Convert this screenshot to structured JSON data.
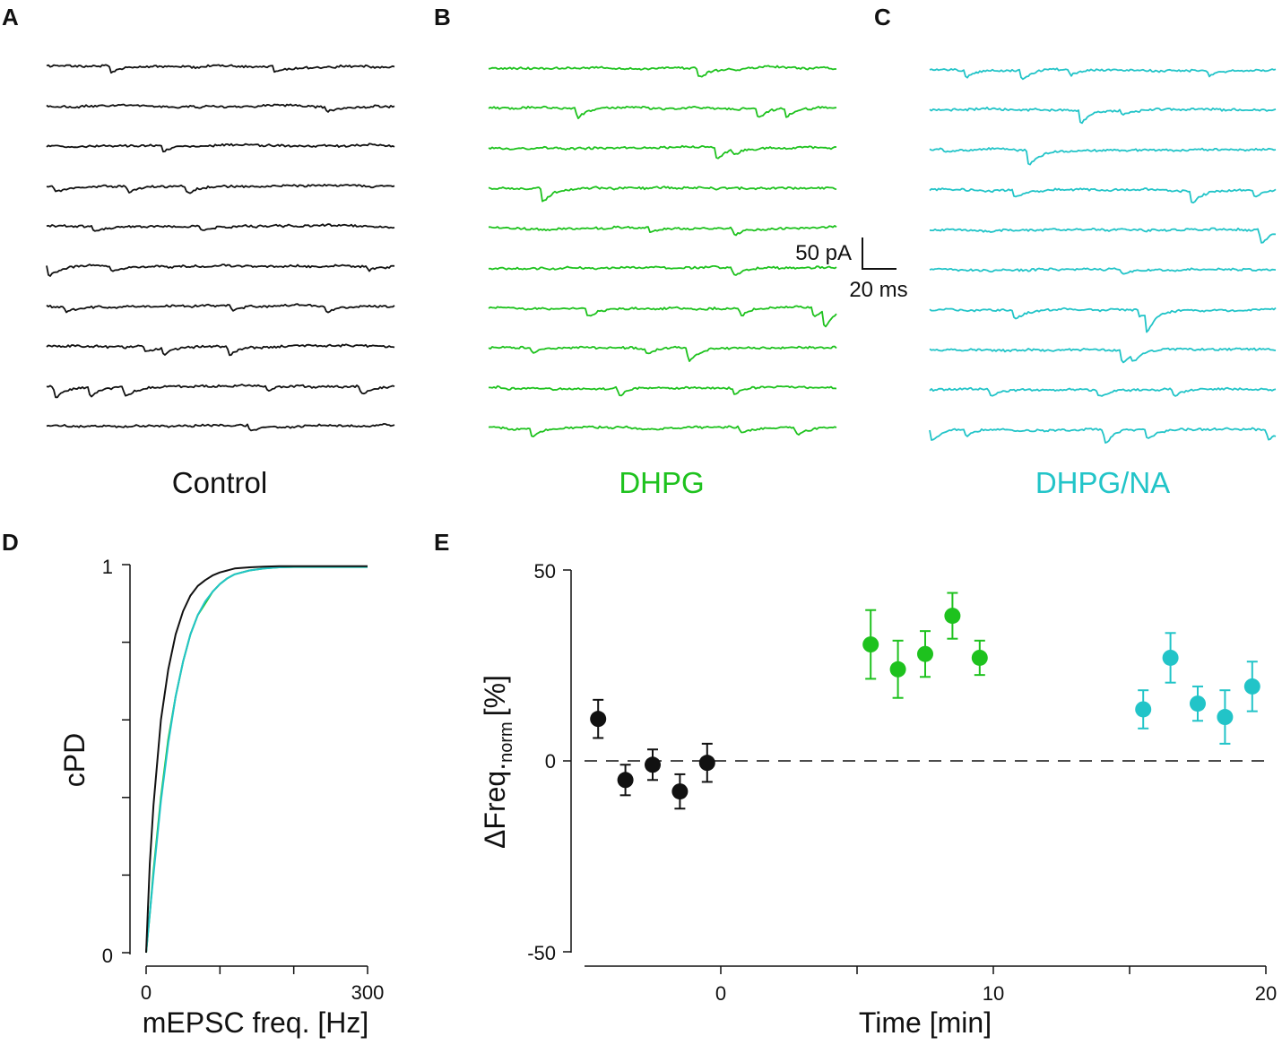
{
  "panel_labels": {
    "a": "A",
    "b": "B",
    "c": "C",
    "d": "D",
    "e": "E"
  },
  "colors": {
    "control": "#111111",
    "dhpg": "#1ec21e",
    "dhpg_na": "#22c4c8",
    "axis": "#111111"
  },
  "traces": {
    "control_label": "Control",
    "dhpg_label": "DHPG",
    "dhpg_na_label": "DHPG/NA",
    "scale_current": "50 pA",
    "scale_time": "20 ms",
    "control_rows": [
      [
        [
          0.18,
          12
        ],
        [
          0.65,
          8
        ]
      ],
      [
        [
          0.8,
          7
        ]
      ],
      [
        [
          0.33,
          9
        ]
      ],
      [
        [
          0.02,
          8
        ],
        [
          0.23,
          9
        ],
        [
          0.4,
          10
        ]
      ],
      [
        [
          0.13,
          8
        ],
        [
          0.44,
          7
        ]
      ],
      [
        [
          0.0,
          16
        ],
        [
          0.18,
          8
        ],
        [
          0.92,
          6
        ]
      ],
      [
        [
          0.05,
          8
        ],
        [
          0.53,
          7
        ],
        [
          0.8,
          9
        ]
      ],
      [
        [
          0.28,
          8
        ],
        [
          0.33,
          10
        ],
        [
          0.52,
          12
        ]
      ],
      [
        [
          0.02,
          16
        ],
        [
          0.12,
          14
        ],
        [
          0.22,
          14
        ],
        [
          0.63,
          7
        ],
        [
          0.9,
          12
        ]
      ],
      [
        [
          0.58,
          7
        ]
      ]
    ],
    "dhpg_rows": [
      [
        [
          0.6,
          14
        ]
      ],
      [
        [
          0.25,
          14
        ],
        [
          0.77,
          15
        ],
        [
          0.85,
          14
        ]
      ],
      [
        [
          0.65,
          18
        ],
        [
          0.7,
          8
        ]
      ],
      [
        [
          0.15,
          22
        ]
      ],
      [
        [
          0.46,
          8
        ],
        [
          0.7,
          10
        ]
      ],
      [
        [
          0.7,
          12
        ]
      ],
      [
        [
          0.28,
          14
        ],
        [
          0.72,
          12
        ],
        [
          0.93,
          14
        ],
        [
          0.96,
          24
        ]
      ],
      [
        [
          0.12,
          8
        ],
        [
          0.45,
          8
        ],
        [
          0.57,
          22
        ]
      ],
      [
        [
          0.37,
          12
        ],
        [
          0.7,
          8
        ]
      ],
      [
        [
          0.12,
          12
        ],
        [
          0.72,
          10
        ],
        [
          0.88,
          10
        ]
      ]
    ],
    "dhpg_na_rows": [
      [
        [
          0.1,
          10
        ],
        [
          0.26,
          14
        ],
        [
          0.4,
          8
        ],
        [
          0.8,
          8
        ]
      ],
      [
        [
          0.43,
          20
        ],
        [
          0.55,
          8
        ]
      ],
      [
        [
          0.04,
          6
        ],
        [
          0.28,
          22
        ]
      ],
      [
        [
          0.24,
          12
        ],
        [
          0.75,
          20
        ],
        [
          0.93,
          10
        ]
      ],
      [
        [
          0.95,
          22
        ]
      ],
      [
        [
          0.55,
          8
        ]
      ],
      [
        [
          0.24,
          16
        ],
        [
          0.6,
          10
        ],
        [
          0.62,
          30
        ]
      ],
      [
        [
          0.55,
          22
        ],
        [
          0.58,
          12
        ]
      ],
      [
        [
          0.17,
          10
        ],
        [
          0.48,
          10
        ],
        [
          0.7,
          10
        ]
      ],
      [
        [
          0.0,
          16
        ],
        [
          0.1,
          10
        ],
        [
          0.5,
          20
        ],
        [
          0.62,
          14
        ],
        [
          0.97,
          16
        ]
      ]
    ]
  },
  "chart_data": [
    {
      "panel": "D",
      "type": "line",
      "title": "",
      "xlabel": "mEPSC freq. [Hz]",
      "ylabel": "cPD",
      "xlim": [
        -8,
        300
      ],
      "ylim": [
        0,
        1
      ],
      "xticks": [
        0,
        300
      ],
      "yticks": [
        0,
        1
      ],
      "series": [
        {
          "name": "Control",
          "color": "#111111",
          "x": [
            0,
            5,
            10,
            20,
            30,
            40,
            50,
            60,
            70,
            80,
            90,
            100,
            110,
            120,
            140,
            160,
            180,
            200,
            300
          ],
          "y": [
            0.0,
            0.23,
            0.38,
            0.6,
            0.73,
            0.82,
            0.88,
            0.92,
            0.945,
            0.96,
            0.972,
            0.98,
            0.985,
            0.99,
            0.993,
            0.995,
            0.996,
            0.996,
            0.996
          ]
        },
        {
          "name": "DHPG",
          "color": "#1ec21e",
          "x": [
            0,
            5,
            10,
            20,
            30,
            40,
            50,
            60,
            70,
            80,
            90,
            100,
            110,
            120,
            140,
            160,
            180,
            200,
            300
          ],
          "y": [
            0.0,
            0.1,
            0.21,
            0.4,
            0.55,
            0.66,
            0.75,
            0.82,
            0.87,
            0.9,
            0.93,
            0.95,
            0.965,
            0.975,
            0.985,
            0.99,
            0.993,
            0.994,
            0.994
          ]
        },
        {
          "name": "DHPG/NA",
          "color": "#22c4c8",
          "x": [
            0,
            5,
            10,
            20,
            30,
            40,
            50,
            60,
            70,
            80,
            90,
            100,
            110,
            120,
            140,
            160,
            180,
            200,
            300
          ],
          "y": [
            0.0,
            0.1,
            0.2,
            0.39,
            0.54,
            0.66,
            0.75,
            0.82,
            0.87,
            0.905,
            0.93,
            0.95,
            0.965,
            0.975,
            0.985,
            0.99,
            0.993,
            0.994,
            0.994
          ]
        }
      ]
    },
    {
      "panel": "E",
      "type": "scatter",
      "title": "",
      "xlabel": "Time [min]",
      "ylabel_main": "ΔFreq.",
      "ylabel_sub": "norm",
      "ylabel_unit": "[%]",
      "xlim": [
        -5,
        20
      ],
      "ylim": [
        -50,
        50
      ],
      "xticks": [
        0,
        10,
        20
      ],
      "yticks": [
        50,
        0,
        -50
      ],
      "reference_line_y": 0,
      "series": [
        {
          "name": "Control",
          "color": "#111111",
          "x": [
            -4.5,
            -3.5,
            -2.5,
            -1.5,
            -0.5
          ],
          "y": [
            11,
            -5,
            -1,
            -8,
            -0.5
          ],
          "err": [
            5,
            4,
            4,
            4.5,
            5
          ]
        },
        {
          "name": "DHPG",
          "color": "#1ec21e",
          "x": [
            5.5,
            6.5,
            7.5,
            8.5,
            9.5
          ],
          "y": [
            30.5,
            24,
            28,
            38,
            27
          ],
          "err": [
            9,
            7.5,
            6,
            6,
            4.5
          ]
        },
        {
          "name": "DHPG/NA",
          "color": "#22c4c8",
          "x": [
            15.5,
            16.5,
            17.5,
            18.5,
            19.5
          ],
          "y": [
            13.5,
            27,
            15,
            11.5,
            19.5
          ],
          "err": [
            5,
            6.5,
            4.5,
            7,
            6.5
          ]
        }
      ]
    }
  ]
}
